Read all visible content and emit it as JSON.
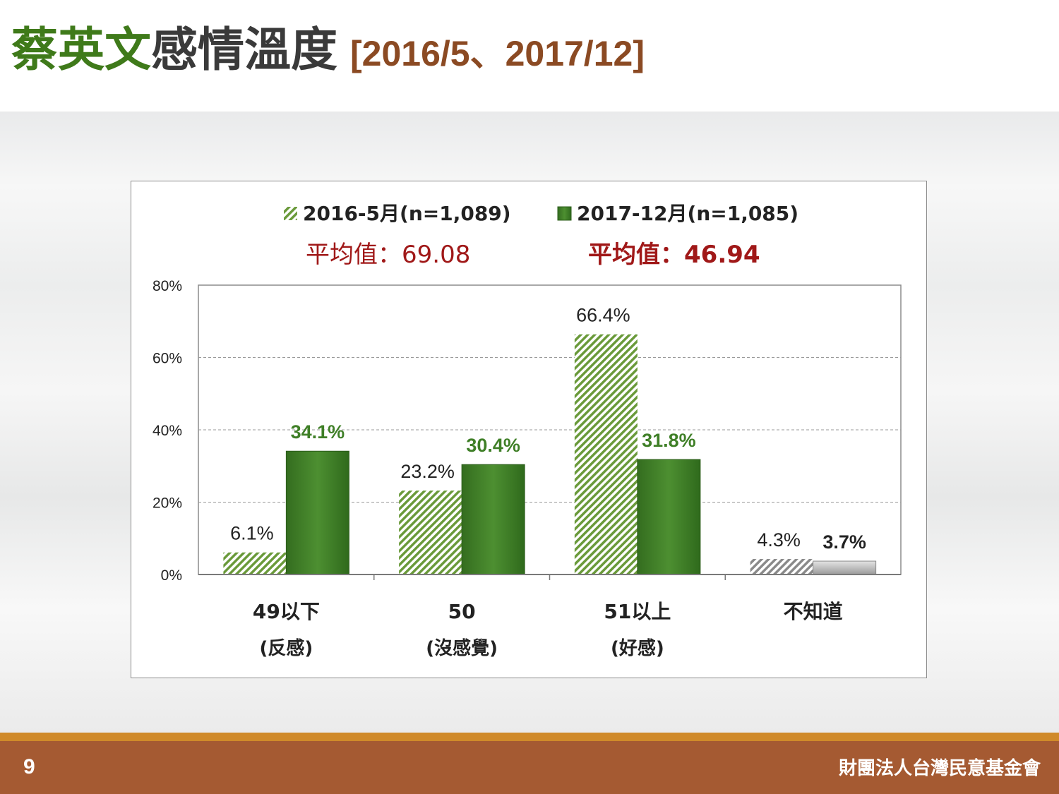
{
  "title": {
    "part1": "蔡英文",
    "part2": "感情溫度",
    "part3": "[2016/5、2017/12]"
  },
  "colors": {
    "title_green": "#3f7a1a",
    "series_2016": "#6a9a3a",
    "series_2017": "#3f7f27",
    "unknown_2016": "#8a8a8a",
    "unknown_2017": "#bfbfbf",
    "avg_text": "#a01818",
    "footer": "#a55a32",
    "footer_stripe": "#d08a2a"
  },
  "chart_data": {
    "type": "bar",
    "categories": [
      {
        "line1": "49以下",
        "line2": "(反感)"
      },
      {
        "line1": "50",
        "line2": "(沒感覺)"
      },
      {
        "line1": "51以上",
        "line2": "(好感)"
      },
      {
        "line1": "不知道",
        "line2": ""
      }
    ],
    "series": [
      {
        "name": "2016-5月(n=1,089)",
        "values": [
          6.1,
          23.2,
          66.4,
          4.3
        ],
        "labels": [
          "6.1%",
          "23.2%",
          "66.4%",
          "4.3%"
        ],
        "pattern": "hatched"
      },
      {
        "name": "2017-12月(n=1,085)",
        "values": [
          34.1,
          30.4,
          31.8,
          3.7
        ],
        "labels": [
          "34.1%",
          "30.4%",
          "31.8%",
          "3.7%"
        ],
        "pattern": "solid"
      }
    ],
    "averages": [
      "平均值：69.08",
      "平均值：46.94"
    ],
    "ylim": [
      0,
      80
    ],
    "yticks": [
      "0%",
      "20%",
      "40%",
      "60%",
      "80%"
    ],
    "ytick_values": [
      0,
      20,
      40,
      60,
      80
    ],
    "grid": true,
    "legend_position": "top"
  },
  "footer": {
    "page_number": "9",
    "organization": "財團法人台灣民意基金會"
  }
}
